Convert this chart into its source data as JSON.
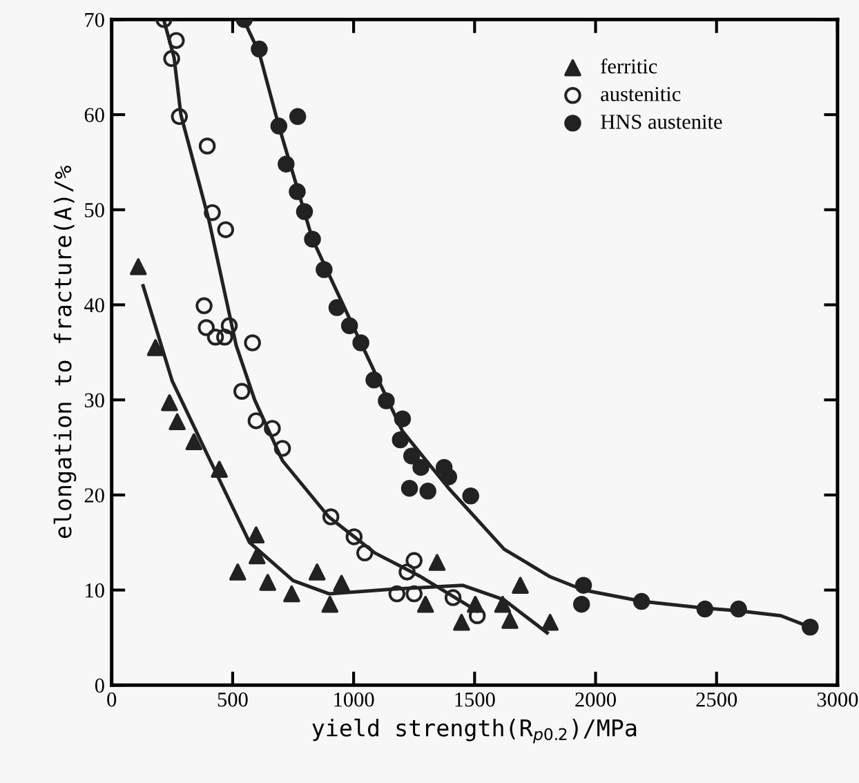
{
  "chart_data": {
    "type": "scatter",
    "xlabel": "yield strength(R$_{p0.2}$)/MPa",
    "ylabel": "elongation to fracture(A)/%",
    "xlim": [
      0,
      3000
    ],
    "ylim": [
      0,
      70
    ],
    "xticks": [
      0,
      500,
      1000,
      1500,
      2000,
      2500,
      3000
    ],
    "yticks": [
      0,
      10,
      20,
      30,
      40,
      50,
      60,
      70
    ],
    "grid": false,
    "legend": "top right",
    "series": [
      {
        "name": "ferritic",
        "marker": "triangle",
        "color": "#222222",
        "x": [
          110,
          181,
          239,
          271,
          340,
          445,
          597,
          601,
          521,
          645,
          744,
          849,
          902,
          950,
          1297,
          1345,
          1446,
          1503,
          1689,
          1646,
          1616,
          1812
        ],
        "values": [
          44,
          35.5,
          29.7,
          27.7,
          25.6,
          22.7,
          15.8,
          13.6,
          11.9,
          10.8,
          9.6,
          11.9,
          8.5,
          10.7,
          8.5,
          12.9,
          6.6,
          8.5,
          10.5,
          6.8,
          8.5,
          6.6
        ]
      },
      {
        "name": "austenitic",
        "marker": "open circle",
        "color": "#222222",
        "x": [
          216,
          267,
          248,
          280,
          395,
          416,
          471,
          382,
          391,
          429,
          467,
          486,
          582,
          538,
          597,
          664,
          706,
          906,
          1002,
          1046,
          1250,
          1221,
          1179,
          1250,
          1411,
          1511
        ],
        "values": [
          70,
          67.8,
          65.9,
          59.8,
          56.7,
          49.7,
          47.9,
          39.9,
          37.6,
          36.6,
          36.6,
          37.8,
          36,
          30.9,
          27.8,
          27,
          24.9,
          17.7,
          15.6,
          13.9,
          13.1,
          11.9,
          9.6,
          9.6,
          9.2,
          7.3
        ]
      },
      {
        "name": "HNS austenite",
        "marker": "circle",
        "color": "#222222",
        "x": [
          548,
          610,
          769,
          691,
          721,
          767,
          797,
          830,
          878,
          931,
          983,
          1030,
          1084,
          1135,
          1202,
          1193,
          1240,
          1278,
          1231,
          1307,
          1374,
          1393,
          1484,
          1950,
          1942,
          2190,
          2452,
          2591,
          2887
        ],
        "values": [
          70,
          66.9,
          59.8,
          58.8,
          54.8,
          51.9,
          49.8,
          46.9,
          43.7,
          39.7,
          37.8,
          36,
          32.1,
          29.9,
          28,
          25.8,
          24.1,
          22.9,
          20.7,
          20.4,
          22.9,
          21.9,
          19.9,
          10.5,
          8.5,
          8.8,
          8.0,
          8.0,
          6.1
        ]
      },
      {
        "type": "line",
        "color": "#222222",
        "x": [
          130,
          250,
          400,
          570,
          750,
          900,
          1160,
          1450,
          1620,
          1800
        ],
        "values": [
          42,
          32,
          24,
          15,
          11,
          9.6,
          10.1,
          10.5,
          9,
          5.5
        ]
      },
      {
        "type": "line",
        "color": "#222222",
        "x": [
          215,
          258,
          286,
          401,
          515,
          591,
          706,
          897,
          1088,
          1278,
          1510
        ],
        "values": [
          70,
          66,
          60,
          49,
          35.7,
          30,
          23.6,
          17.7,
          13.9,
          11.4,
          7.8
        ]
      },
      {
        "type": "line",
        "color": "#222222",
        "x": [
          545,
          610,
          691,
          830,
          1030,
          1202,
          1393,
          1622,
          1812,
          1950,
          2194,
          2452,
          2595,
          2766,
          2887
        ],
        "values": [
          70,
          66.5,
          58.8,
          46.9,
          36,
          26.7,
          20.7,
          14.3,
          11.4,
          10,
          8.8,
          8.1,
          7.8,
          7.3,
          6.1
        ]
      }
    ]
  }
}
